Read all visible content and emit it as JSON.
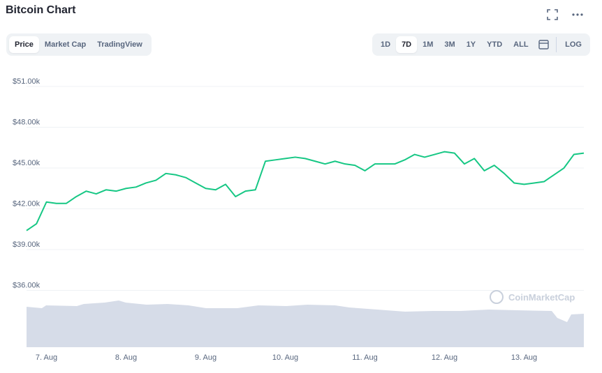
{
  "header": {
    "title": "Bitcoin Chart"
  },
  "tabs": [
    "Price",
    "Market Cap",
    "TradingView"
  ],
  "ranges": [
    "1D",
    "7D",
    "1M",
    "3M",
    "1Y",
    "YTD",
    "ALL"
  ],
  "scale_toggle": "LOG",
  "watermark": "CoinMarketCap",
  "chart_data": {
    "type": "line",
    "categories": [
      null,
      null,
      "7. Aug",
      null,
      null,
      null,
      null,
      null,
      null,
      null,
      "8. Aug",
      null,
      null,
      null,
      null,
      null,
      null,
      null,
      "9. Aug",
      null,
      null,
      null,
      null,
      null,
      null,
      null,
      "10. Aug",
      null,
      null,
      null,
      null,
      null,
      null,
      null,
      "11. Aug",
      null,
      null,
      null,
      null,
      null,
      null,
      null,
      "12. Aug",
      null,
      null,
      null,
      null,
      null,
      null,
      null,
      "13. Aug",
      null,
      null,
      null,
      null,
      null,
      null
    ],
    "series": [
      {
        "name": "Price",
        "color": "#16c784",
        "values": [
          40400,
          40900,
          42500,
          42400,
          42400,
          42900,
          43300,
          43100,
          43400,
          43300,
          43500,
          43600,
          43900,
          44100,
          44600,
          44500,
          44300,
          43900,
          43500,
          43400,
          43800,
          42900,
          43300,
          43400,
          45500,
          45600,
          45700,
          45800,
          45700,
          45500,
          45300,
          45500,
          45300,
          45200,
          44800,
          45300,
          45300,
          45300,
          45600,
          46000,
          45800,
          46000,
          46200,
          46100,
          45300,
          45700,
          44800,
          45200,
          44600,
          43900,
          43800,
          43900,
          44000,
          44500,
          45000,
          46000,
          46100
        ]
      }
    ],
    "ylim": [
      31820,
      51720
    ],
    "yticks": [
      {
        "value": 36000,
        "label": "$36.00k"
      },
      {
        "value": 39000,
        "label": "$39.00k"
      },
      {
        "value": 42000,
        "label": "$42.00k"
      },
      {
        "value": 45000,
        "label": "$45.00k"
      },
      {
        "value": 48000,
        "label": "$48.00k"
      },
      {
        "value": 51000,
        "label": "$51.00k"
      }
    ],
    "grid": true
  }
}
